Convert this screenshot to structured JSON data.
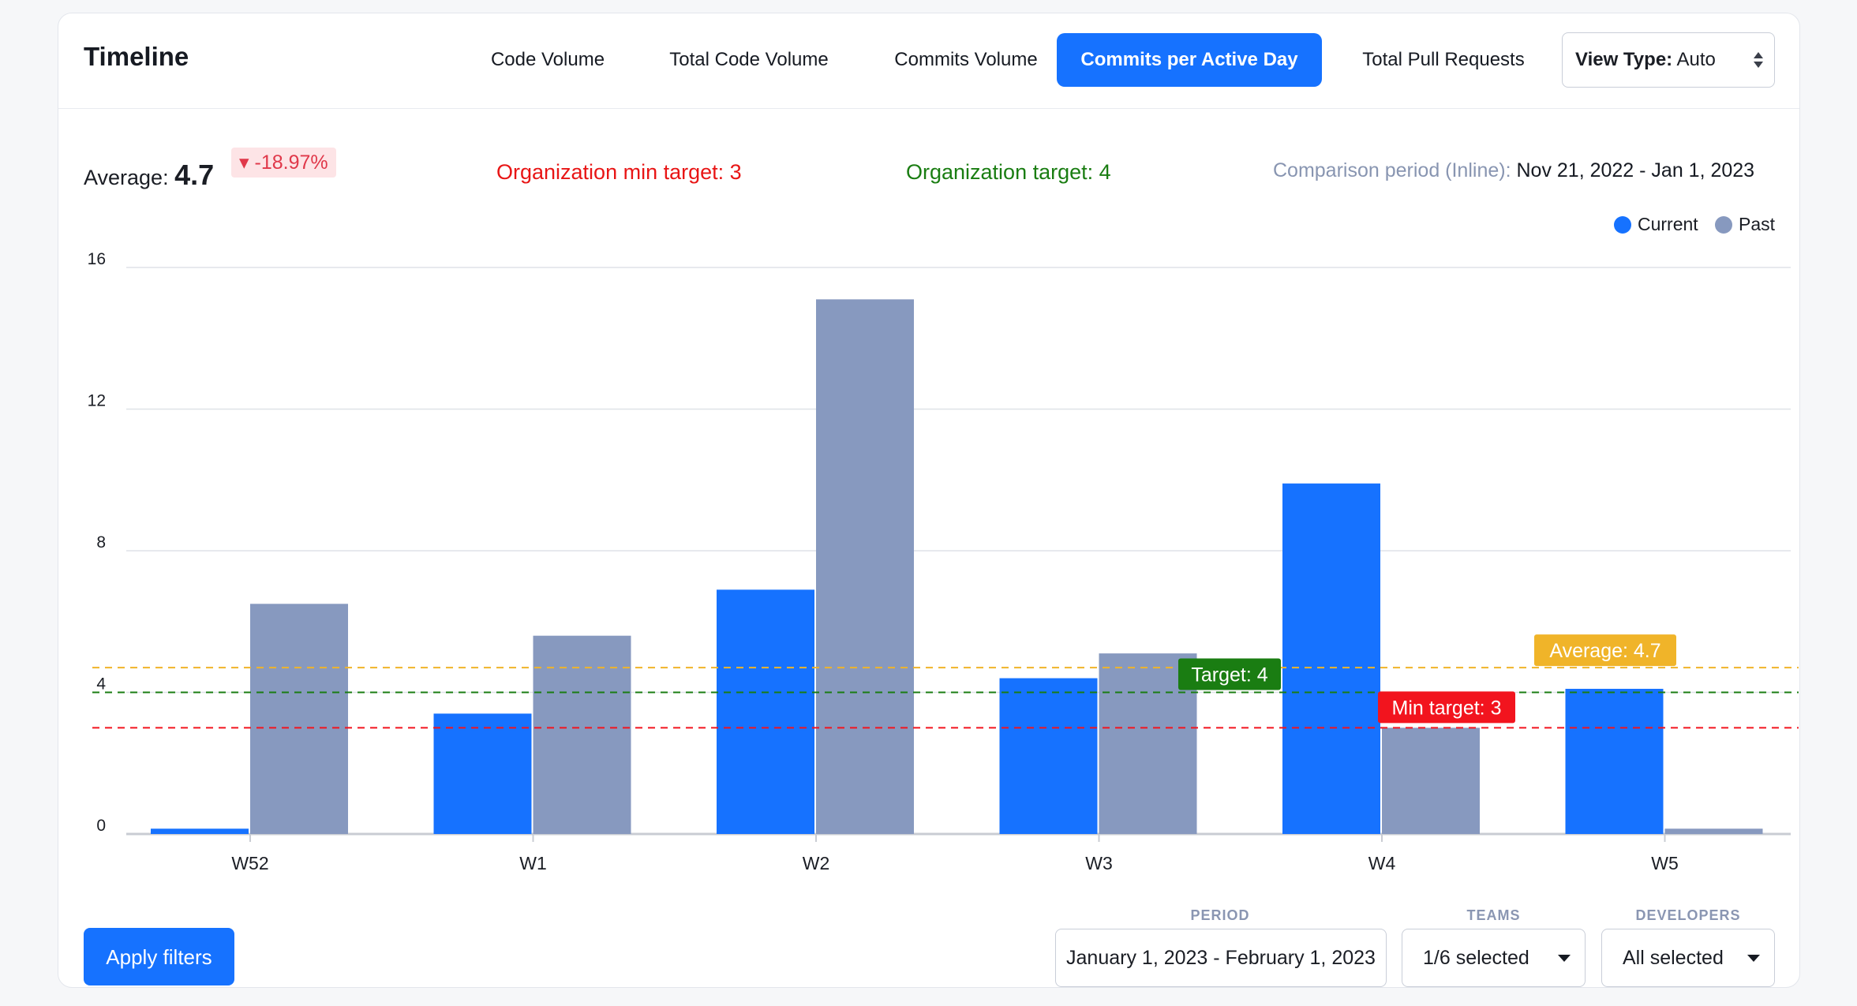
{
  "header": {
    "title": "Timeline",
    "tabs": [
      {
        "label": "Code Volume",
        "active": false
      },
      {
        "label": "Total Code Volume",
        "active": false
      },
      {
        "label": "Commits Volume",
        "active": false
      },
      {
        "label": "Commits per Active Day",
        "active": true
      },
      {
        "label": "Total Pull Requests",
        "active": false
      }
    ],
    "view_type_label": "View Type:",
    "view_type_value": "Auto"
  },
  "stats": {
    "average_label": "Average:",
    "average_value": "4.7",
    "delta": "▾ -18.97%",
    "min_target": "Organization min target: 3",
    "org_target": "Organization target: 4",
    "comparison_label": "Comparison period (Inline):",
    "comparison_dates": "Nov 21, 2022 - Jan 1, 2023"
  },
  "legend": [
    {
      "name": "Current",
      "color": "#1672ff"
    },
    {
      "name": "Past",
      "color": "#8799bf"
    }
  ],
  "chart_data": {
    "type": "bar",
    "categories": [
      "W52",
      "W1",
      "W2",
      "W3",
      "W4",
      "W5"
    ],
    "series": [
      {
        "name": "Current",
        "color": "#1672ff",
        "values": [
          0.15,
          3.4,
          6.9,
          4.4,
          9.9,
          4.1
        ]
      },
      {
        "name": "Past",
        "color": "#8799bf",
        "values": [
          6.5,
          5.6,
          15.1,
          5.1,
          3.0,
          0.15
        ]
      }
    ],
    "ylim": [
      0,
      16
    ],
    "yticks": [
      0,
      4,
      8,
      12,
      16
    ],
    "grid": true,
    "legend_position": "top-right",
    "reference_lines": [
      {
        "label": "Average: 4.7",
        "value": 4.7,
        "color": "#f0b429"
      },
      {
        "label": "Target: 4",
        "value": 4,
        "color": "#1a7d12"
      },
      {
        "label": "Min target: 3",
        "value": 3,
        "color": "#f2141e"
      }
    ]
  },
  "filters": {
    "apply_label": "Apply filters",
    "period_label": "PERIOD",
    "period_value": "January 1, 2023 - February 1, 2023",
    "teams_label": "TEAMS",
    "teams_value": "1/6 selected",
    "developers_label": "DEVELOPERS",
    "developers_value": "All selected"
  }
}
